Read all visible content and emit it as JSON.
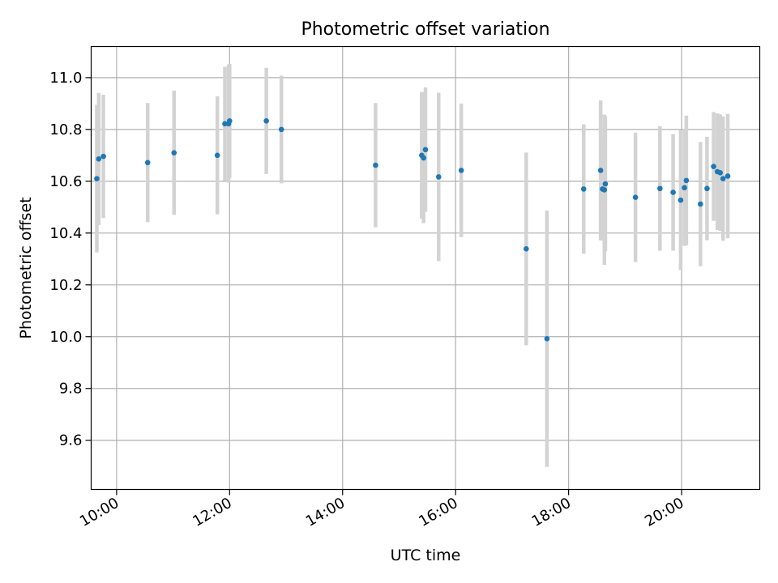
{
  "chart_data": {
    "type": "scatter",
    "title": "Photometric offset variation",
    "xlabel": "UTC time",
    "ylabel": "Photometric offset",
    "xlim": [
      "09:33",
      "21:23"
    ],
    "ylim": [
      9.41,
      11.12
    ],
    "grid": true,
    "colors": {
      "points": "#1f77b4",
      "errorbars": "#d3d3d3",
      "grid": "#b0b0b0"
    },
    "x_ticks": [
      "10:00",
      "12:00",
      "14:00",
      "16:00",
      "18:00",
      "20:00"
    ],
    "y_ticks": [
      "9.6",
      "9.8",
      "10.0",
      "10.2",
      "10.4",
      "10.6",
      "10.8",
      "11.0"
    ],
    "series": [
      {
        "points": [
          {
            "x": "09:39",
            "y": 10.61,
            "err": 0.285
          },
          {
            "x": "09:41",
            "y": 10.686,
            "err": 0.255
          },
          {
            "x": "09:46",
            "y": 10.696,
            "err": 0.238
          },
          {
            "x": "10:33",
            "y": 10.672,
            "err": 0.23
          },
          {
            "x": "11:01",
            "y": 10.71,
            "err": 0.24
          },
          {
            "x": "11:47",
            "y": 10.7,
            "err": 0.228
          },
          {
            "x": "11:55",
            "y": 10.822,
            "err": 0.22
          },
          {
            "x": "11:59",
            "y": 10.822,
            "err": 0.228
          },
          {
            "x": "12:00",
            "y": 10.833,
            "err": 0.22
          },
          {
            "x": "12:39",
            "y": 10.833,
            "err": 0.205
          },
          {
            "x": "12:55",
            "y": 10.8,
            "err": 0.208
          },
          {
            "x": "14:35",
            "y": 10.662,
            "err": 0.24
          },
          {
            "x": "15:24",
            "y": 10.7,
            "err": 0.245
          },
          {
            "x": "15:26",
            "y": 10.69,
            "err": 0.252
          },
          {
            "x": "15:28",
            "y": 10.722,
            "err": 0.24
          },
          {
            "x": "15:42",
            "y": 10.617,
            "err": 0.325
          },
          {
            "x": "16:06",
            "y": 10.642,
            "err": 0.258
          },
          {
            "x": "17:15",
            "y": 10.339,
            "err": 0.372
          },
          {
            "x": "17:37",
            "y": 9.992,
            "err": 0.495
          },
          {
            "x": "18:16",
            "y": 10.57,
            "err": 0.25
          },
          {
            "x": "18:34",
            "y": 10.642,
            "err": 0.27
          },
          {
            "x": "18:36",
            "y": 10.57,
            "err": 0.2
          },
          {
            "x": "18:38",
            "y": 10.567,
            "err": 0.29
          },
          {
            "x": "18:39",
            "y": 10.59,
            "err": 0.26
          },
          {
            "x": "19:11",
            "y": 10.538,
            "err": 0.25
          },
          {
            "x": "19:37",
            "y": 10.572,
            "err": 0.24
          },
          {
            "x": "19:51",
            "y": 10.557,
            "err": 0.225
          },
          {
            "x": "19:59",
            "y": 10.527,
            "err": 0.27
          },
          {
            "x": "20:03",
            "y": 10.575,
            "err": 0.225
          },
          {
            "x": "20:05",
            "y": 10.603,
            "err": 0.25
          },
          {
            "x": "20:20",
            "y": 10.512,
            "err": 0.24
          },
          {
            "x": "20:27",
            "y": 10.572,
            "err": 0.2
          },
          {
            "x": "20:34",
            "y": 10.657,
            "err": 0.21
          },
          {
            "x": "20:38",
            "y": 10.637,
            "err": 0.225
          },
          {
            "x": "20:41",
            "y": 10.633,
            "err": 0.225
          },
          {
            "x": "20:44",
            "y": 10.61,
            "err": 0.24
          },
          {
            "x": "20:49",
            "y": 10.62,
            "err": 0.24
          }
        ]
      }
    ]
  }
}
